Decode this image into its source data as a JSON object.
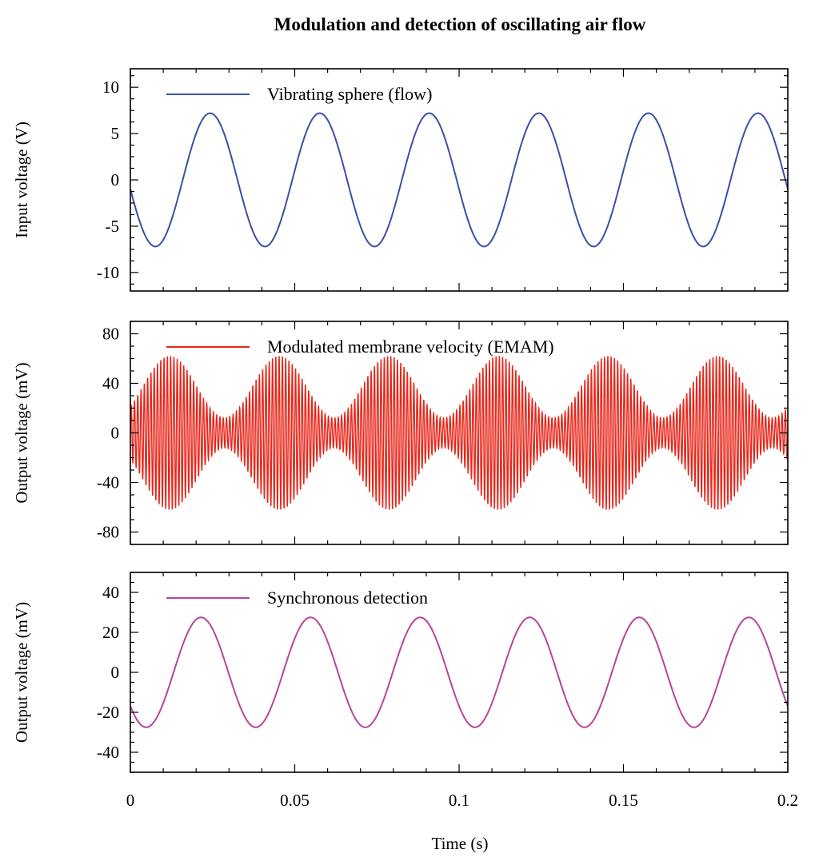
{
  "chart_data": {
    "type": "line",
    "title": "Modulation and detection of oscillating air flow",
    "xlabel": "Time (s)",
    "xlim": [
      0,
      0.2
    ],
    "x_ticks": [
      0,
      0.05,
      0.1,
      0.15,
      0.2
    ],
    "x_tick_labels": [
      "0",
      "0.05",
      "0.1",
      "0.15",
      "0.2"
    ],
    "panels": [
      {
        "ylabel": "Input voltage (V)",
        "ylim": [
          -12,
          12
        ],
        "y_ticks": [
          -10,
          -5,
          0,
          5,
          10
        ],
        "y_tick_labels": [
          "-10",
          "-5",
          "0",
          "5",
          "10"
        ],
        "series": [
          {
            "name": "Vibrating sphere (flow)",
            "color": "#3a4fa8",
            "signal": "sine",
            "amplitude": 7.2,
            "frequency_hz": 30,
            "phase_deg": 188
          }
        ]
      },
      {
        "ylabel": "Output voltage (mV)",
        "ylim": [
          -90,
          90
        ],
        "y_ticks": [
          -80,
          -40,
          0,
          40,
          80
        ],
        "y_tick_labels": [
          "-80",
          "-40",
          "0",
          "40",
          "80"
        ],
        "series": [
          {
            "name": "Modulated membrane velocity (EMAM)",
            "color": "#e8261a",
            "signal": "am",
            "envelope_max": 62,
            "envelope_min": 12,
            "envelope_frequency_hz": 30,
            "envelope_peak_time_s": 0.012,
            "carrier_frequency_hz": 1000
          }
        ]
      },
      {
        "ylabel": "Output voltage (mV)",
        "ylim": [
          -50,
          50
        ],
        "y_ticks": [
          -40,
          -20,
          0,
          20,
          40
        ],
        "y_tick_labels": [
          "-40",
          "-20",
          "0",
          "20",
          "40"
        ],
        "series": [
          {
            "name": "Synchronous detection",
            "color": "#b8449a",
            "signal": "sine",
            "amplitude": 27.5,
            "frequency_hz": 30,
            "phase_deg": 218
          }
        ]
      }
    ]
  }
}
